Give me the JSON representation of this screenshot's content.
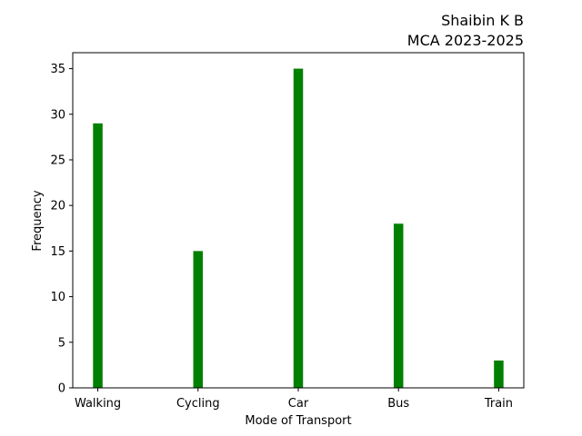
{
  "chart_data": {
    "type": "bar",
    "title": "Shaibin K B\nMCA 2023-2025",
    "title_lines": [
      "Shaibin K B",
      "MCA 2023-2025"
    ],
    "title_align": "right",
    "xlabel": "Mode of Transport",
    "ylabel": "Frequency",
    "categories": [
      "Walking",
      "Cycling",
      "Car",
      "Bus",
      "Train"
    ],
    "values": [
      29,
      15,
      35,
      18,
      3
    ],
    "yticks": [
      0,
      5,
      10,
      15,
      20,
      25,
      30,
      35
    ],
    "ylim": [
      0,
      36.75
    ],
    "bar_color": "#008000",
    "grid": false,
    "legend": "none"
  }
}
